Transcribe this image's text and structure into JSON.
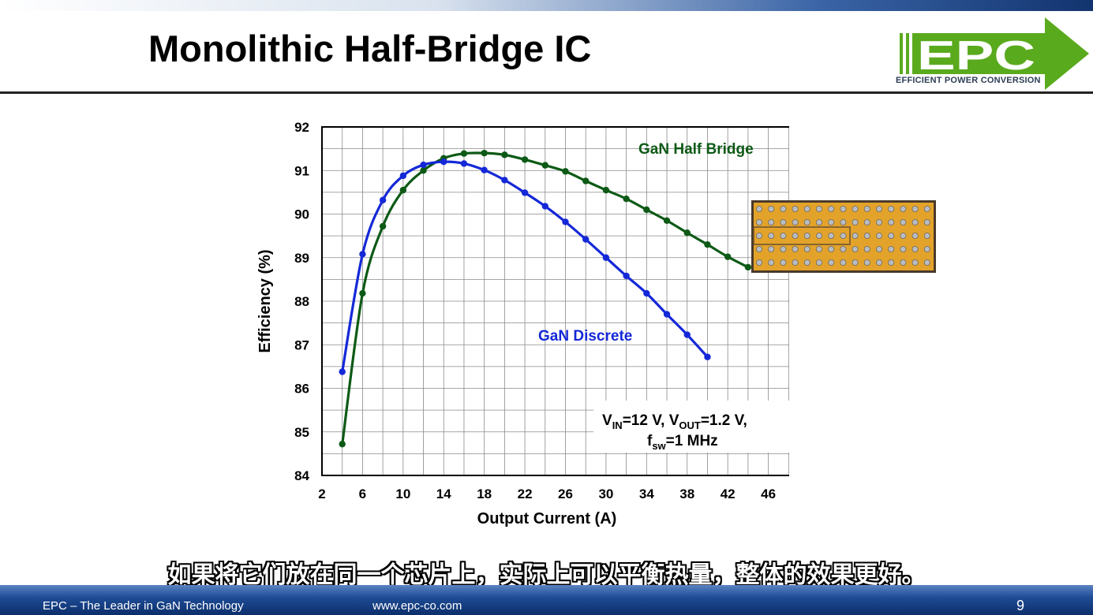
{
  "slide": {
    "title": "Monolithic Half-Bridge IC",
    "logo_text": "EPC",
    "logo_caption": "EFFICIENT POWER CONVERSION",
    "subtitle": "如果将它们放在同一个芯片上，实际上可以平衡热量，整体的效果更好。",
    "footer_left": "EPC – The Leader in GaN Technology",
    "footer_url": "www.epc-co.com",
    "page_number": "9",
    "colors": {
      "logo_green": "#5aaa1e",
      "footer_blue": "#1f4d97",
      "die_gold": "#e3a32a"
    }
  },
  "chart_data": {
    "type": "line",
    "xlabel": "Output Current (A)",
    "ylabel": "Efficiency (%)",
    "xlim": [
      2,
      50
    ],
    "ylim": [
      84,
      92
    ],
    "xticks": [
      2,
      6,
      10,
      14,
      18,
      22,
      26,
      30,
      34,
      38,
      42,
      46,
      50
    ],
    "yticks": [
      84,
      85,
      86,
      87,
      88,
      89,
      90,
      91,
      92
    ],
    "grid": true,
    "series": [
      {
        "name": "GaN Half Bridge",
        "color": "#0d5a16",
        "x": [
          4,
          6,
          8,
          10,
          12,
          14,
          16,
          18,
          20,
          22,
          24,
          26,
          28,
          30,
          32,
          34,
          36,
          38,
          40,
          42,
          44
        ],
        "y": [
          84.72,
          88.18,
          89.72,
          90.55,
          91.0,
          91.28,
          91.39,
          91.4,
          91.36,
          91.25,
          91.12,
          90.98,
          90.76,
          90.55,
          90.35,
          90.1,
          89.85,
          89.57,
          89.3,
          89.02,
          88.78
        ]
      },
      {
        "name": "GaN Discrete",
        "color": "#1428d8",
        "x": [
          4,
          6,
          8,
          10,
          12,
          14,
          16,
          18,
          20,
          22,
          24,
          26,
          28,
          30,
          32,
          34,
          36,
          38,
          40
        ],
        "y": [
          86.38,
          89.08,
          90.32,
          90.88,
          91.13,
          91.2,
          91.16,
          91.01,
          90.78,
          90.49,
          90.18,
          89.82,
          89.42,
          89.0,
          88.58,
          88.18,
          87.7,
          87.23,
          86.72
        ]
      }
    ],
    "annotation": {
      "line1": {
        "v1": "V",
        "v1_sub": "IN",
        "v1_rest": "=12 V, ",
        "v2": "V",
        "v2_sub": "OUT",
        "v2_rest": "=1.2 V,"
      },
      "line2": {
        "f": "f",
        "f_sub": "sw",
        "f_rest": "=1 MHz"
      }
    }
  }
}
